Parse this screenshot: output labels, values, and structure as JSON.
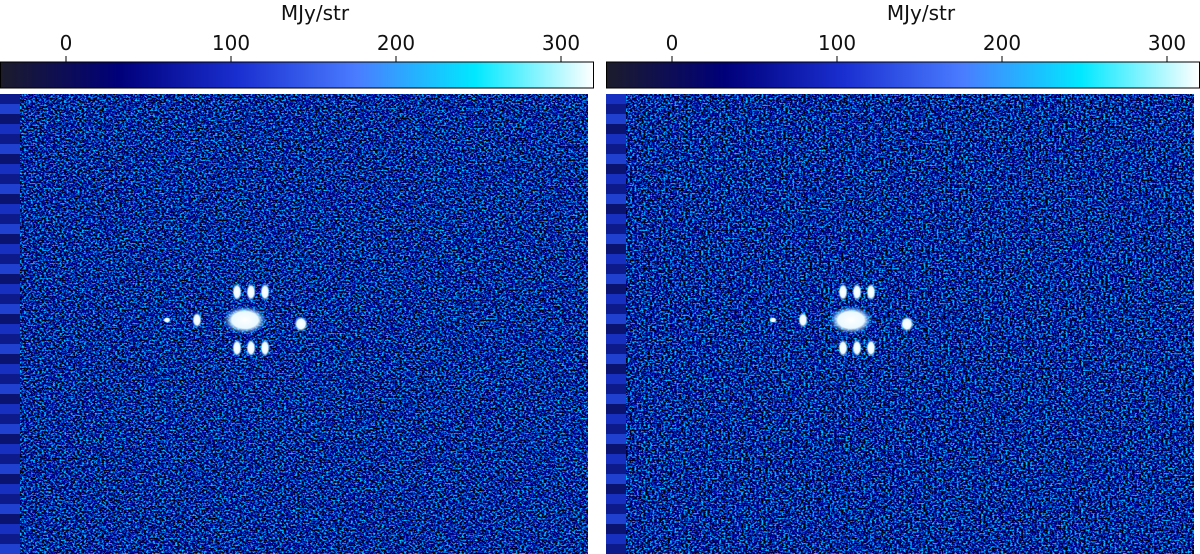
{
  "chart_data": [
    {
      "type": "image",
      "colorbar": {
        "label": "MJy/str",
        "lim": [
          -40,
          320
        ],
        "ticks": [
          0,
          100,
          200,
          300
        ],
        "colormap": [
          "#1c1c2c",
          "#00007a",
          "#1a2fd0",
          "#4a7cff",
          "#00e8ff",
          "#ffffff"
        ]
      }
    },
    {
      "type": "image",
      "colorbar": {
        "label": "MJy/str",
        "lim": [
          -40,
          320
        ],
        "ticks": [
          0,
          100,
          200,
          300
        ],
        "colormap": [
          "#1c1c2c",
          "#00007a",
          "#1a2fd0",
          "#4a7cff",
          "#00e8ff",
          "#ffffff"
        ]
      }
    }
  ]
}
